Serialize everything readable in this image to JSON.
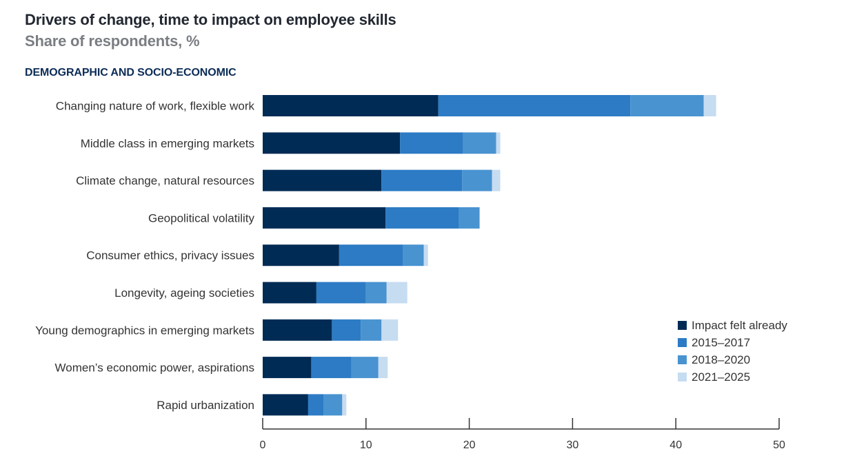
{
  "chart_data": {
    "type": "bar",
    "orientation": "horizontal",
    "stacked": true,
    "title": "Drivers of change, time to impact on employee skills",
    "subtitle": "Share of respondents, %",
    "section_label": "DEMOGRAPHIC AND SOCIO-ECONOMIC",
    "xlabel": "",
    "ylabel": "",
    "xlim": [
      0,
      50
    ],
    "xticks": [
      0,
      10,
      20,
      30,
      40,
      50
    ],
    "grid": false,
    "legend_position": "bottom-right",
    "categories": [
      "Changing nature of work, flexible work",
      "Middle class in emerging markets",
      "Climate change, natural resources",
      "Geopolitical volatility",
      "Consumer ethics, privacy issues",
      "Longevity, ageing societies",
      "Young demographics in emerging markets",
      "Women’s economic power, aspirations",
      "Rapid urbanization"
    ],
    "series": [
      {
        "name": "Impact felt already",
        "color": "#002b55",
        "values": [
          17.0,
          13.3,
          11.5,
          11.9,
          7.4,
          5.2,
          6.7,
          4.7,
          4.4
        ]
      },
      {
        "name": "2015–2017",
        "color": "#2c7bc4",
        "values": [
          18.6,
          6.1,
          7.8,
          7.1,
          6.2,
          4.8,
          2.8,
          3.9,
          1.5
        ]
      },
      {
        "name": "2018–2020",
        "color": "#4993d0",
        "values": [
          7.1,
          3.2,
          2.9,
          2.0,
          2.0,
          2.0,
          2.0,
          2.6,
          1.8
        ]
      },
      {
        "name": "2021–2025",
        "color": "#c6dcf1",
        "values": [
          1.2,
          0.4,
          0.8,
          0.0,
          0.4,
          2.0,
          1.6,
          0.9,
          0.4
        ]
      }
    ]
  }
}
